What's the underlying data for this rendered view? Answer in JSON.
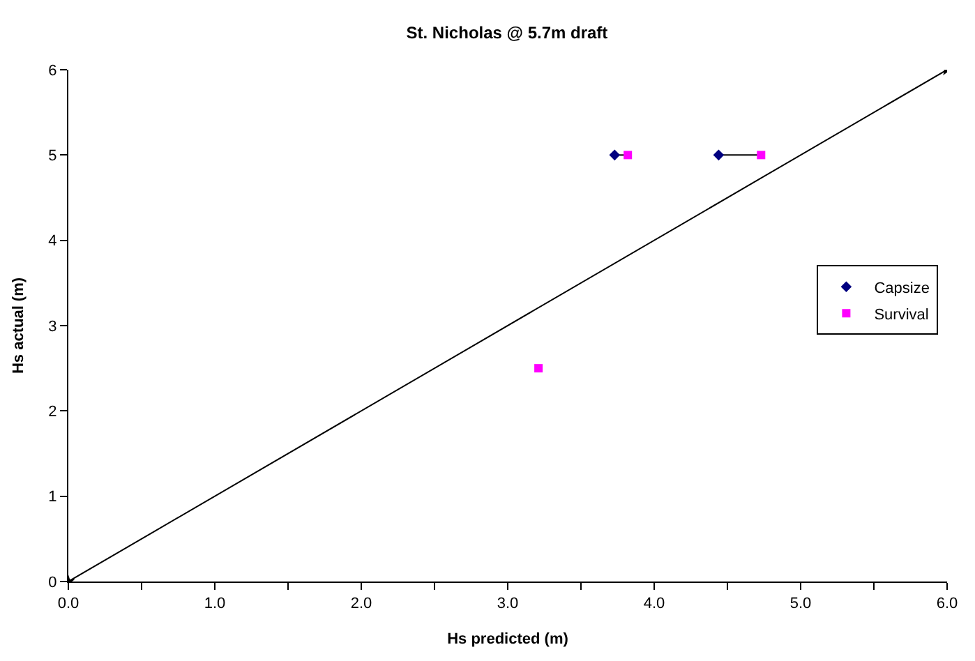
{
  "chart_data": {
    "type": "scatter",
    "title": "St. Nicholas @ 5.7m draft",
    "xlabel": "Hs predicted (m)",
    "ylabel": "Hs actual (m)",
    "series": [
      {
        "type": "line",
        "x": [
          0,
          6
        ],
        "values": [
          0,
          6
        ],
        "color": "#000000",
        "marker": "star"
      },
      {
        "type": "line",
        "x": [
          3.73,
          3.82
        ],
        "values": [
          5,
          5
        ],
        "color": "#000000",
        "marker": "none"
      },
      {
        "type": "line",
        "x": [
          4.44,
          4.73
        ],
        "values": [
          5,
          5
        ],
        "color": "#000000",
        "marker": "none"
      },
      {
        "name": "Capsize",
        "x": [
          3.73,
          4.44
        ],
        "values": [
          5,
          5
        ],
        "color": "#000080",
        "marker": "diamond"
      },
      {
        "name": "Survival",
        "x": [
          3.82,
          4.73,
          3.21
        ],
        "values": [
          5,
          5,
          2.5
        ],
        "color": "#ff00ff",
        "marker": "square"
      }
    ],
    "xlim": [
      0,
      6
    ],
    "ylim": [
      0,
      6
    ],
    "xticks": [
      {
        "value": 0,
        "label": "0.0"
      },
      {
        "value": 0.5,
        "label": null
      },
      {
        "value": 1,
        "label": "1.0"
      },
      {
        "value": 1.5,
        "label": null
      },
      {
        "value": 2,
        "label": "2.0"
      },
      {
        "value": 2.5,
        "label": null
      },
      {
        "value": 3,
        "label": "3.0"
      },
      {
        "value": 3.5,
        "label": null
      },
      {
        "value": 4,
        "label": "4.0"
      },
      {
        "value": 4.5,
        "label": null
      },
      {
        "value": 5,
        "label": "5.0"
      },
      {
        "value": 5.5,
        "label": null
      },
      {
        "value": 6,
        "label": "6.0"
      }
    ],
    "yticks": [
      0,
      1,
      2,
      3,
      4,
      5,
      6
    ],
    "grid": false,
    "legend": "right"
  }
}
